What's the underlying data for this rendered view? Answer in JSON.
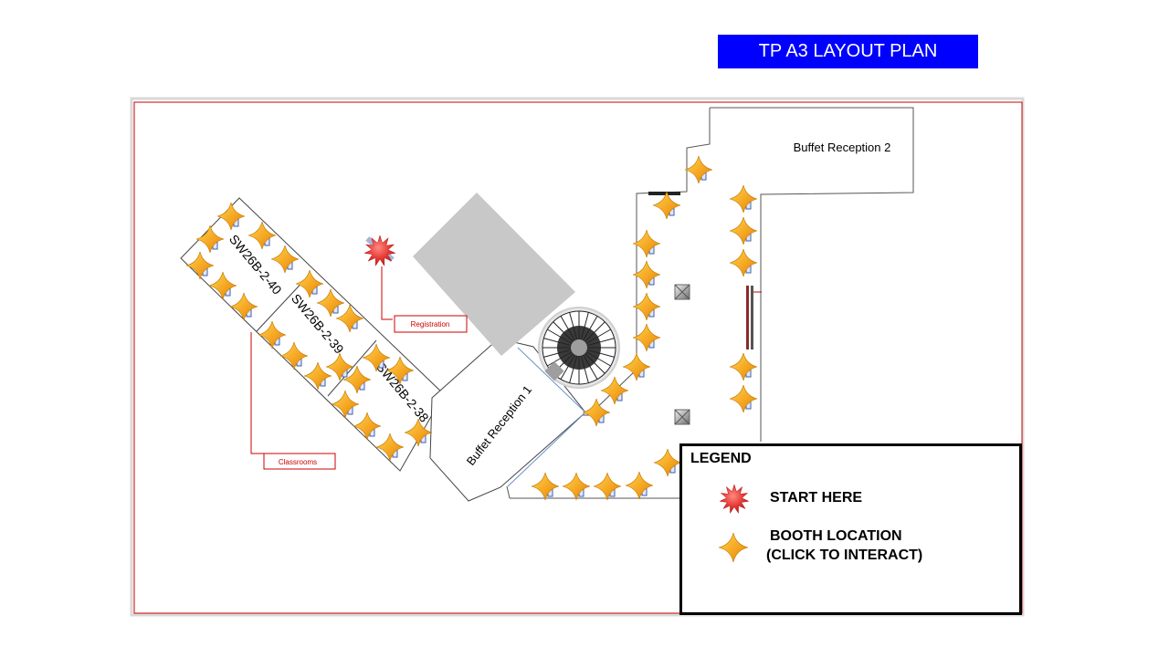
{
  "title": "TP A3 LAYOUT PLAN",
  "colors": {
    "banner": "#0000ff",
    "boundary": "#cc0000",
    "booth_star": "#f5a623",
    "start_burst": "#e53935",
    "block": "#c8c8c8"
  },
  "rooms": {
    "r40": "SW26B-2-40",
    "r39": "SW26B-2-39",
    "r38": "SW26B-2-38",
    "buffet1": "Buffet Reception 1",
    "buffet2": "Buffet Reception 2"
  },
  "callouts": {
    "registration": "Registration",
    "classrooms": "Classrooms"
  },
  "legend": {
    "title": "LEGEND",
    "start_here": "START HERE",
    "booth_line1": "BOOTH LOCATION",
    "booth_line2": "(CLICK TO INTERACT)",
    "start_icon": "red-starburst-icon",
    "booth_icon": "orange-four-point-star-icon"
  },
  "booth_count": 42
}
